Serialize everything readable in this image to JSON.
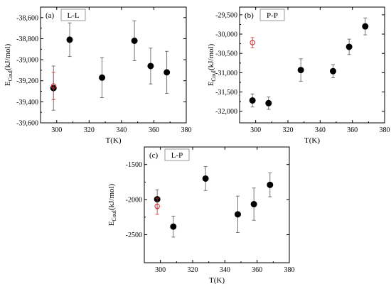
{
  "chart_data": [
    {
      "type": "scatter",
      "panel_label": "(a)",
      "tag": "L-L",
      "xlabel": "T(K)",
      "ylabel_main": "E",
      "ylabel_sub": "Coul",
      "ylabel_unit": "(kJ/mol)",
      "xlim": [
        290,
        380
      ],
      "ylim": [
        -39600,
        -38500
      ],
      "xticks": [
        300,
        320,
        340,
        360,
        380
      ],
      "xtick_labels": [
        "300",
        "320",
        "340",
        "360",
        "380"
      ],
      "yticks": [
        -39600,
        -39400,
        -39200,
        -39000,
        -38800,
        -38600
      ],
      "ytick_labels": [
        "-39,600",
        "-39,400",
        "-39,200",
        "-39,000",
        "-38,800",
        "-38,600"
      ],
      "series": [
        {
          "marker": "filled-circle",
          "color": "#000000",
          "x": [
            298,
            308,
            328,
            348,
            358,
            368
          ],
          "y": [
            -39270,
            -38810,
            -39170,
            -38820,
            -39060,
            -39120
          ],
          "err": [
            210,
            160,
            190,
            190,
            170,
            200
          ]
        },
        {
          "marker": "open-circle",
          "color": "#d62728",
          "x": [
            298
          ],
          "y": [
            -39250
          ],
          "err": [
            130
          ]
        }
      ]
    },
    {
      "type": "scatter",
      "panel_label": "(b)",
      "tag": "P-P",
      "xlabel": "T(K)",
      "ylabel_main": "E",
      "ylabel_sub": "Coul",
      "ylabel_unit": "(kJ/mol)",
      "xlim": [
        290,
        380
      ],
      "ylim": [
        -32300,
        -29300
      ],
      "xticks": [
        300,
        320,
        340,
        360,
        380
      ],
      "xtick_labels": [
        "300",
        "320",
        "340",
        "360",
        "380"
      ],
      "yticks": [
        -32000,
        -31500,
        -31000,
        -30500,
        -30000,
        -29500
      ],
      "ytick_labels": [
        "-32,000",
        "-31,500",
        "-31,000",
        "-30,500",
        "-30,000",
        "-29,500"
      ],
      "series": [
        {
          "marker": "filled-circle",
          "color": "#000000",
          "x": [
            298,
            308,
            328,
            348,
            358,
            368
          ],
          "y": [
            -31720,
            -31790,
            -30930,
            -30960,
            -30330,
            -29800
          ],
          "err": [
            170,
            160,
            290,
            170,
            200,
            220
          ]
        },
        {
          "marker": "open-circle",
          "color": "#d62728",
          "x": [
            298
          ],
          "y": [
            -30220
          ],
          "err": [
            130
          ]
        }
      ]
    },
    {
      "type": "scatter",
      "panel_label": "(c)",
      "tag": "L-P",
      "xlabel": "T(K)",
      "ylabel_main": "E",
      "ylabel_sub": "Coul",
      "ylabel_unit": "(kJ/mol)",
      "xlim": [
        290,
        380
      ],
      "ylim": [
        -2900,
        -1250
      ],
      "xticks": [
        300,
        320,
        340,
        360,
        380
      ],
      "xtick_labels": [
        "300",
        "320",
        "340",
        "360",
        "380"
      ],
      "yticks": [
        -2500,
        -2000,
        -1500
      ],
      "ytick_labels": [
        "-2500",
        "-2000",
        "-1500"
      ],
      "series": [
        {
          "marker": "filled-circle",
          "color": "#000000",
          "x": [
            298,
            308,
            328,
            348,
            358,
            368
          ],
          "y": [
            -1995,
            -2385,
            -1700,
            -2210,
            -2065,
            -1790
          ],
          "err": [
            135,
            150,
            170,
            260,
            230,
            170
          ]
        },
        {
          "marker": "open-circle",
          "color": "#d62728",
          "x": [
            298
          ],
          "y": [
            -2095
          ],
          "err": [
            115
          ]
        }
      ]
    }
  ]
}
